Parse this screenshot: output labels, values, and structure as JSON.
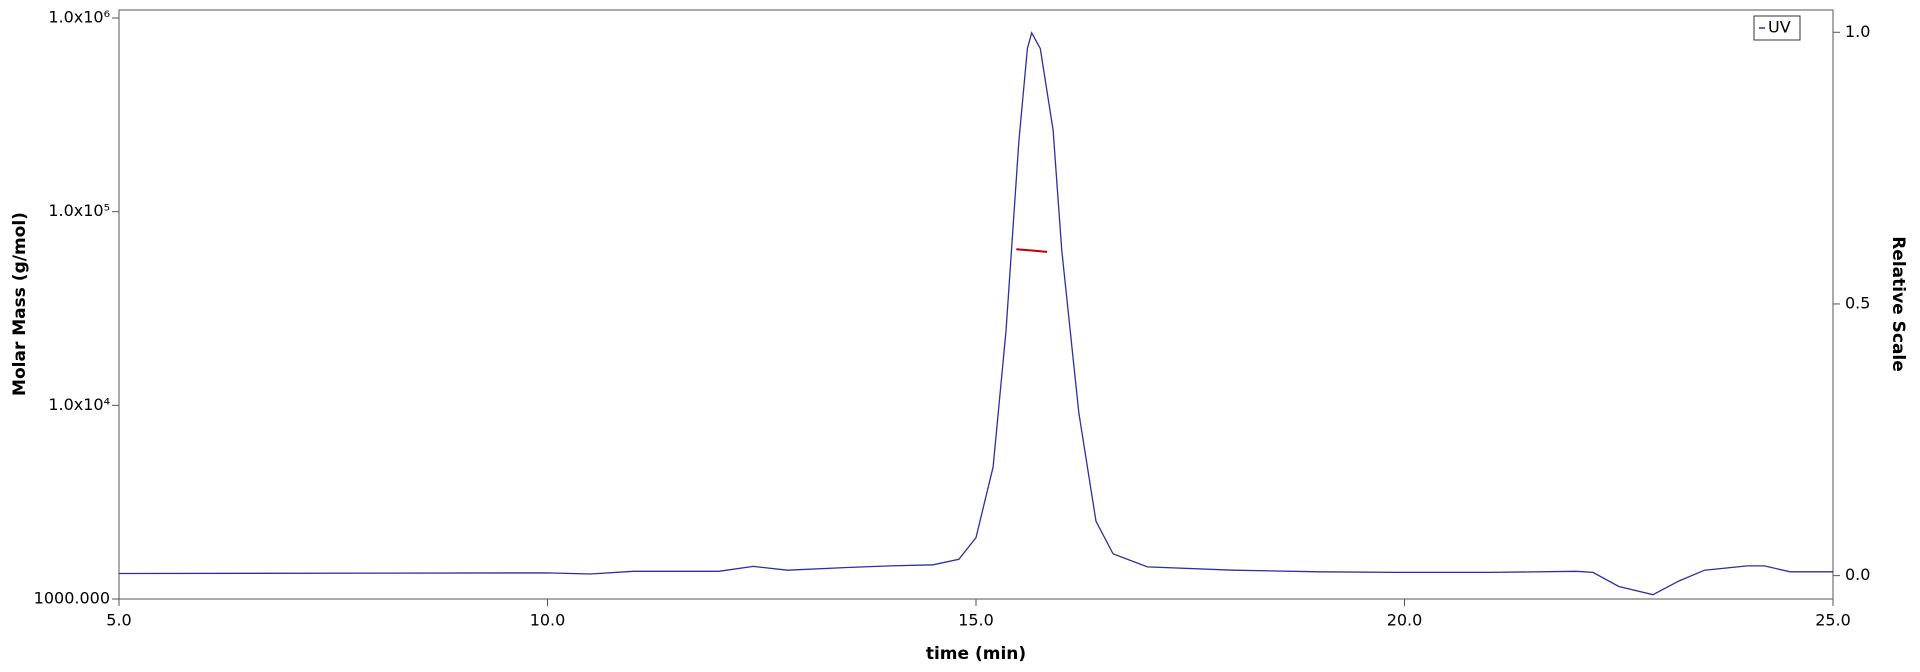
{
  "chart_data": {
    "type": "line",
    "x_label": "time (min)",
    "y_label": "Molar Mass (g/mol)",
    "y2_label": "Relative Scale",
    "xlim": [
      5,
      25
    ],
    "xticks": [
      {
        "value": 5,
        "label": "5.0"
      },
      {
        "value": 10,
        "label": "10.0"
      },
      {
        "value": 15,
        "label": "15.0"
      },
      {
        "value": 20,
        "label": "20.0"
      },
      {
        "value": 25,
        "label": "25.0"
      }
    ],
    "ylim": [
      1000,
      1100000
    ],
    "y_log": true,
    "yticks": [
      {
        "value": 1000,
        "label": "1000.000"
      },
      {
        "value": 10000,
        "label": "1.0x10⁴"
      },
      {
        "value": 100000,
        "label": "1.0x10⁵"
      },
      {
        "value": 1000000,
        "label": "1.0x10⁶"
      }
    ],
    "y2lim": [
      -0.043,
      1.041
    ],
    "y2ticks": [
      {
        "value": 0,
        "label": "0.0"
      },
      {
        "value": 0.5,
        "label": "0.5"
      },
      {
        "value": 1,
        "label": "1.0"
      }
    ],
    "legend": "top-right",
    "series": [
      {
        "name": "UV",
        "color": "#2e2e9e",
        "axis": "y2",
        "x": [
          5.0,
          10.0,
          10.5,
          11.0,
          12.0,
          12.4,
          12.8,
          13.5,
          14.0,
          14.5,
          14.8,
          15.0,
          15.2,
          15.35,
          15.5,
          15.6,
          15.65,
          15.75,
          15.9,
          16.0,
          16.2,
          16.4,
          16.6,
          17.0,
          18.0,
          19.0,
          20.0,
          21.0,
          22.0,
          22.2,
          22.5,
          22.9,
          23.2,
          23.5,
          24.0,
          24.2,
          24.5,
          25.0
        ],
        "values": [
          0.004,
          0.005,
          0.003,
          0.008,
          0.008,
          0.017,
          0.01,
          0.015,
          0.018,
          0.02,
          0.03,
          0.07,
          0.2,
          0.45,
          0.8,
          0.97,
          0.999,
          0.97,
          0.82,
          0.6,
          0.3,
          0.1,
          0.04,
          0.016,
          0.01,
          0.007,
          0.006,
          0.006,
          0.008,
          0.006,
          -0.02,
          -0.035,
          -0.01,
          0.01,
          0.018,
          0.018,
          0.007,
          0.007
        ]
      },
      {
        "color": "#c00000",
        "axis": "y",
        "x": [
          15.47,
          15.65,
          15.83
        ],
        "values": [
          64000,
          63000,
          62000
        ]
      }
    ]
  }
}
